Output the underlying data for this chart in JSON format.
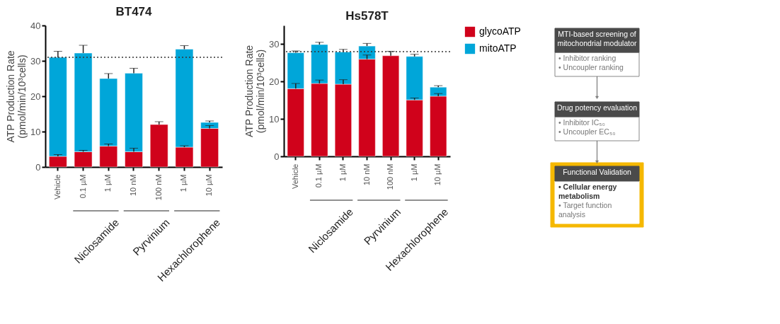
{
  "chart_data": [
    {
      "type": "bar",
      "title": "BT474",
      "ylabel": "ATP Production Rate (pmol/min/10³cells)",
      "stacked": true,
      "legend": "right",
      "grid": false,
      "categories": [
        "Vehicle",
        "0.1 µM",
        "1 µM",
        "10 nM",
        "100 nM",
        "1 µM",
        "10 µM"
      ],
      "series": [
        {
          "name": "glycoATP",
          "color": "#d0021b",
          "values": [
            3,
            4.3,
            5.9,
            4.3,
            12,
            5.6,
            10.9
          ],
          "errors": [
            0.5,
            0.4,
            0.6,
            1.0,
            0.8,
            0.4,
            0.8
          ]
        },
        {
          "name": "mitoATP",
          "color": "#00a6d9",
          "values": [
            28,
            27.9,
            19.1,
            22.2,
            null,
            27.7,
            1.7
          ],
          "errors": [
            1.7,
            2.2,
            1.4,
            1.4,
            null,
            1.0,
            0.4
          ]
        }
      ],
      "ylim": [
        0,
        40
      ],
      "yticks": [
        0,
        10,
        20,
        30,
        40
      ],
      "ref_lines": [
        {
          "axis": "y",
          "value": 31,
          "line_style": "dotted",
          "color": "#333333"
        }
      ],
      "annotations": [
        "Niclosamide",
        "Pyrvinium",
        "Hexachlorophene"
      ]
    },
    {
      "type": "bar",
      "title": "Hs578T",
      "ylabel": "ATP Production Rate (pmol/min/10³cells)",
      "stacked": true,
      "legend": "right",
      "grid": false,
      "categories": [
        "Vehicle",
        "0.1 µM",
        "1 µM",
        "10 nM",
        "100 nM",
        "1 µM",
        "10 µM"
      ],
      "series": [
        {
          "name": "glycoATP",
          "color": "#d0021b",
          "values": [
            18.1,
            19.5,
            19.3,
            26.0,
            26.9,
            15.1,
            16.1
          ],
          "errors": [
            1.4,
            0.9,
            1.2,
            1.1,
            1.2,
            0.5,
            0.7
          ]
        },
        {
          "name": "mitoATP",
          "color": "#00a6d9",
          "values": [
            9.6,
            10.4,
            8.6,
            3.5,
            null,
            11.6,
            2.4
          ],
          "errors": [
            0.5,
            0.6,
            0.7,
            0.7,
            null,
            0.6,
            0.4
          ]
        }
      ],
      "ylim": [
        0,
        35
      ],
      "yticks": [
        0,
        10,
        20,
        30
      ],
      "ref_lines": [
        {
          "axis": "y",
          "value": 28,
          "line_style": "dotted",
          "color": "#333333"
        }
      ],
      "annotations": [
        "Niclosamide",
        "Pyrvinium",
        "Hexachlorophene"
      ]
    },
    {
      "type": "other",
      "annotations": [
        "MTI-based screening of mitochondrial modulator",
        "• Inhibitor ranking",
        "• Uncoupler ranking",
        "Drug potency evaluation",
        "• Inhibitor IC₅₀",
        "• Uncoupler EC₅₀",
        "Functional Validation",
        "• Cellular energy metabolism",
        "• Target function analysis"
      ]
    }
  ]
}
